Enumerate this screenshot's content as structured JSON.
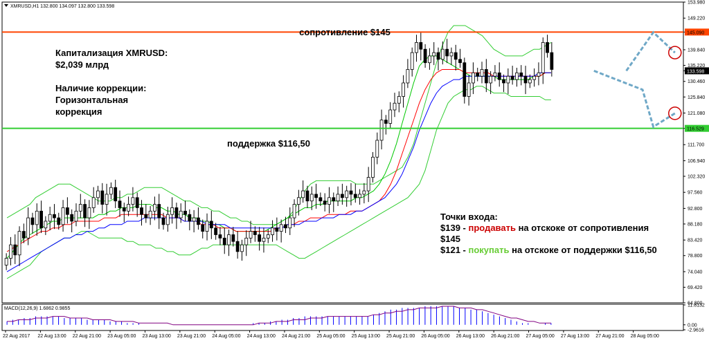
{
  "header": {
    "symbol_info": "XMRUSD,H1  132.800 134.097 132.800 133.598"
  },
  "macd_header": "MACD(12,26,9) 1.6862 0.9855",
  "annotations": {
    "resistance": "сопротивление $145",
    "support": "поддержка $116,50",
    "cap_title": "Капитализация XMRUSD:",
    "cap_value": "$2,039 млрд",
    "corr_title": "Наличие коррекции:",
    "corr_line2": "Горизонтальная",
    "corr_line3": "коррекция",
    "entry_title": "Точки входа:",
    "entry1_price": "$139 -",
    "entry1_action": "продавать",
    "entry1_rest": "на отскоке от сопротивления",
    "entry1_cont": "$145",
    "entry2_price": "$121 -",
    "entry2_action": "покупать",
    "entry2_rest": "на отскоке от поддержки $116,50"
  },
  "colors": {
    "resistance": "#ff4500",
    "support": "#32cd32",
    "sell": "#cc0000",
    "buy": "#66cc33",
    "bollinger": "#32cd32",
    "ma_fast": "#00c800",
    "ma_mid": "#ff0000",
    "ma_slow": "#0000ff",
    "forecast": "#6fa8c7",
    "target_circle": "#cc0000",
    "macd_hist": "#0000ff",
    "macd_signal": "#800080",
    "price_badge": "#000000"
  },
  "chart_data": {
    "type": "candlestick",
    "y_ticks": [
      "153.980",
      "149.220",
      "145.090",
      "139.840",
      "135.220",
      "133.598",
      "130.460",
      "125.840",
      "121.080",
      "116.529",
      "111.700",
      "106.940",
      "102.320",
      "97.560",
      "92.800",
      "88.180",
      "83.420",
      "78.800",
      "74.040",
      "69.420",
      "64.800"
    ],
    "ylim": [
      64.8,
      153.98
    ],
    "x_labels": [
      "22 Aug 2017",
      "22 Aug 13:00",
      "22 Aug 21:00",
      "23 Aug 05:00",
      "23 Aug 13:00",
      "23 Aug 21:00",
      "24 Aug 05:00",
      "24 Aug 13:00",
      "24 Aug 21:00",
      "25 Aug 05:00",
      "25 Aug 13:00",
      "25 Aug 21:00",
      "26 Aug 05:00",
      "26 Aug 13:00",
      "26 Aug 21:00",
      "27 Aug 05:00",
      "27 Aug 13:00",
      "27 Aug 21:00",
      "28 Aug 05:00"
    ],
    "resistance": 145.09,
    "support": 116.529,
    "last_price": 133.598,
    "closes": [
      78,
      82,
      79,
      86,
      84,
      90,
      88,
      92,
      87,
      89,
      91,
      90,
      88,
      93,
      91,
      89,
      92,
      94,
      90,
      93,
      96,
      98,
      94,
      97,
      99,
      95,
      93,
      92,
      94,
      96,
      93,
      91,
      90,
      92,
      94,
      90,
      88,
      91,
      93,
      90,
      92,
      91,
      89,
      90,
      88,
      86,
      89,
      87,
      85,
      84,
      82,
      85,
      83,
      80,
      82,
      84,
      86,
      85,
      83,
      84,
      85,
      87,
      86,
      88,
      87,
      90,
      94,
      96,
      98,
      95,
      97,
      96,
      95,
      94,
      96,
      95,
      97,
      96,
      98,
      97,
      96,
      97,
      98,
      102,
      108,
      113,
      119,
      118,
      122,
      124,
      126,
      130,
      134,
      139,
      142,
      140,
      136,
      138,
      139,
      137,
      140,
      138,
      139,
      137,
      136,
      126,
      130,
      133,
      132,
      134,
      130,
      132,
      133,
      131,
      130,
      132,
      131,
      133,
      132,
      130,
      131,
      132,
      133,
      142,
      139,
      134
    ],
    "bb_upper": [
      90,
      91,
      92,
      93,
      94,
      96,
      97,
      98,
      99,
      100,
      100,
      100,
      99,
      98,
      97,
      96,
      95,
      95,
      95,
      96,
      96,
      97,
      97,
      98,
      99,
      99,
      99,
      99,
      98,
      97,
      96,
      95,
      95,
      94,
      93,
      93,
      92,
      92,
      91,
      90,
      90,
      89,
      89,
      88,
      88,
      88,
      88,
      88,
      89,
      90,
      92,
      95,
      98,
      100,
      101,
      101,
      101,
      101,
      101,
      101,
      101,
      100,
      100,
      100,
      100,
      101,
      102,
      103,
      104,
      105,
      108,
      112,
      118,
      124,
      130,
      136,
      141,
      145,
      147,
      147,
      147,
      146,
      145,
      144,
      142,
      140,
      139,
      138,
      138,
      138,
      138,
      139,
      140,
      140,
      141,
      142
    ],
    "bb_lower": [
      72,
      73,
      74,
      75,
      76,
      78,
      80,
      81,
      82,
      83,
      84,
      84,
      85,
      86,
      86,
      85,
      84,
      84,
      84,
      84,
      84,
      83,
      83,
      82,
      82,
      82,
      81,
      81,
      80,
      80,
      79,
      79,
      79,
      80,
      81,
      81,
      82,
      82,
      82,
      82,
      82,
      82,
      82,
      82,
      82,
      82,
      82,
      82,
      81,
      80,
      79,
      78,
      78,
      79,
      80,
      81,
      82,
      83,
      84,
      85,
      86,
      87,
      88,
      89,
      90,
      91,
      92,
      93,
      94,
      95,
      96,
      98,
      100,
      104,
      110,
      116,
      120,
      124,
      126,
      127,
      128,
      128,
      129,
      129,
      128,
      127,
      127,
      127,
      126,
      126,
      126,
      126,
      126,
      126,
      125,
      125
    ],
    "ma_fast": [
      78,
      80,
      82,
      84,
      85,
      86,
      87,
      88,
      89,
      89,
      90,
      90,
      90,
      90,
      90,
      90,
      91,
      91,
      92,
      92,
      93,
      93,
      93,
      94,
      94,
      94,
      93,
      93,
      92,
      92,
      91,
      91,
      90,
      90,
      89,
      89,
      88,
      88,
      87,
      87,
      86,
      86,
      86,
      86,
      86,
      86,
      87,
      88,
      89,
      90,
      91,
      92,
      93,
      93,
      94,
      94,
      95,
      95,
      95,
      95,
      95,
      96,
      96,
      97,
      98,
      100,
      103,
      107,
      112,
      118,
      124,
      130,
      135,
      137,
      138,
      138,
      137,
      136,
      135,
      134,
      133,
      132,
      132,
      132,
      132,
      132,
      131,
      131,
      131,
      131,
      131,
      131,
      132,
      132,
      133,
      133
    ],
    "ma_mid": [
      80,
      81,
      82,
      83,
      84,
      85,
      86,
      86,
      87,
      87,
      88,
      88,
      89,
      89,
      89,
      89,
      89,
      90,
      90,
      90,
      91,
      91,
      91,
      91,
      91,
      91,
      91,
      91,
      90,
      90,
      90,
      89,
      89,
      89,
      88,
      88,
      88,
      87,
      87,
      87,
      86,
      86,
      86,
      86,
      86,
      86,
      86,
      87,
      87,
      88,
      88,
      89,
      89,
      90,
      90,
      90,
      91,
      91,
      91,
      91,
      92,
      92,
      92,
      93,
      94,
      95,
      97,
      100,
      104,
      109,
      114,
      119,
      124,
      128,
      131,
      133,
      134,
      134,
      134,
      134,
      133,
      133,
      133,
      133,
      133,
      132,
      132,
      132,
      132,
      132,
      132,
      132,
      132,
      132,
      133,
      133
    ],
    "ma_slow": [
      74,
      75,
      76,
      77,
      78,
      79,
      80,
      81,
      82,
      83,
      84,
      84,
      85,
      85,
      86,
      86,
      87,
      87,
      88,
      88,
      88,
      89,
      89,
      89,
      90,
      90,
      90,
      90,
      90,
      90,
      90,
      89,
      89,
      89,
      89,
      88,
      88,
      88,
      88,
      87,
      87,
      87,
      87,
      87,
      87,
      87,
      87,
      87,
      87,
      88,
      88,
      88,
      89,
      89,
      89,
      90,
      90,
      90,
      91,
      91,
      91,
      92,
      92,
      93,
      94,
      95,
      96,
      98,
      100,
      103,
      107,
      111,
      116,
      120,
      124,
      127,
      129,
      130,
      131,
      131,
      132,
      132,
      132,
      132,
      132,
      132,
      132,
      132,
      132,
      132,
      132,
      132,
      132,
      133,
      133,
      133
    ],
    "forecast_down": [
      [
        133,
        133.6
      ],
      [
        139,
        128
      ],
      [
        144,
        117
      ]
    ],
    "forecast_up": [
      [
        139,
        133.6
      ],
      [
        144,
        145
      ],
      [
        148,
        139
      ]
    ],
    "macd_ylim": [
      -2.9616,
      11.8132
    ],
    "macd_ticks": [
      "11.8132",
      "0.00",
      "-2.9616"
    ],
    "macd_hist": [
      2,
      3,
      3,
      4,
      4,
      5,
      5,
      5,
      5,
      5,
      4,
      4,
      4,
      4,
      3,
      3,
      3,
      3,
      2,
      2,
      2,
      1,
      1,
      1,
      0,
      0,
      0,
      0,
      0,
      0,
      0,
      0,
      0,
      0,
      0,
      0,
      0,
      0,
      0,
      0,
      0,
      0,
      0,
      1,
      1,
      1,
      2,
      2,
      3,
      3,
      4,
      4,
      5,
      5,
      5,
      5,
      5,
      5,
      5,
      5,
      5,
      5,
      5,
      5,
      6,
      7,
      8,
      9,
      9,
      10,
      10,
      10,
      10,
      11,
      11,
      11,
      11,
      11,
      11,
      10,
      10,
      9,
      9,
      8,
      7,
      6,
      5,
      4,
      3,
      2,
      1,
      1,
      0,
      0,
      1,
      1
    ],
    "macd_signal": [
      2,
      2,
      3,
      3,
      3,
      4,
      4,
      4,
      5,
      5,
      5,
      4,
      4,
      4,
      4,
      3,
      3,
      3,
      3,
      2,
      2,
      2,
      2,
      1,
      1,
      1,
      1,
      1,
      1,
      0,
      0,
      0,
      0,
      0,
      0,
      0,
      0,
      0,
      0,
      0,
      0,
      0,
      0,
      0,
      1,
      1,
      1,
      2,
      2,
      2,
      3,
      3,
      3,
      4,
      4,
      4,
      5,
      5,
      5,
      5,
      5,
      5,
      5,
      5,
      6,
      6,
      7,
      7,
      8,
      8,
      9,
      9,
      10,
      10,
      10,
      10,
      11,
      11,
      11,
      10,
      10,
      10,
      9,
      9,
      8,
      7,
      6,
      5,
      4,
      4,
      3,
      2,
      2,
      1,
      1,
      1
    ]
  }
}
